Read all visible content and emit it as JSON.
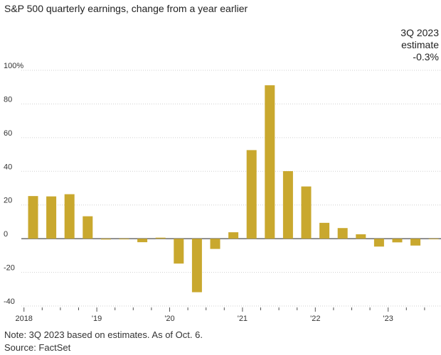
{
  "title": "S&P 500 quarterly earnings, change from a year earlier",
  "note": "Note: 3Q 2023 based on estimates. As of Oct. 6.",
  "source": "Source: FactSet",
  "colors": {
    "bar": "#c9a82e",
    "grid": "#cfcfcf",
    "zero": "#222222",
    "marker": "#888888",
    "text": "#333333"
  },
  "chart_data": {
    "type": "bar",
    "ylim": [
      -40,
      100
    ],
    "yticks": [
      -40,
      -20,
      0,
      20,
      40,
      60,
      80,
      100
    ],
    "ytick_labels": [
      "-40",
      "-20",
      "0",
      "20",
      "40",
      "60",
      "80",
      "100%"
    ],
    "xtick_labels": [
      "2018",
      "'19",
      "'20",
      "'21",
      "'22",
      "'23"
    ],
    "categories": [
      "1Q 2018",
      "2Q 2018",
      "3Q 2018",
      "4Q 2018",
      "1Q 2019",
      "2Q 2019",
      "3Q 2019",
      "4Q 2019",
      "1Q 2020",
      "2Q 2020",
      "3Q 2020",
      "4Q 2020",
      "1Q 2021",
      "2Q 2021",
      "3Q 2021",
      "4Q 2021",
      "1Q 2022",
      "2Q 2022",
      "3Q 2022",
      "4Q 2022",
      "1Q 2023",
      "2Q 2023",
      "3Q 2023"
    ],
    "values": [
      25.3,
      25.1,
      26.4,
      13.3,
      -0.5,
      -0.4,
      -2.1,
      0.6,
      -14.8,
      -31.8,
      -6.1,
      3.8,
      52.6,
      91.1,
      40.1,
      31.0,
      9.4,
      6.3,
      2.6,
      -4.7,
      -2.2,
      -4.1,
      -0.3
    ],
    "annotation": {
      "lines": [
        "3Q 2023",
        "estimate",
        "-0.3%"
      ]
    }
  }
}
